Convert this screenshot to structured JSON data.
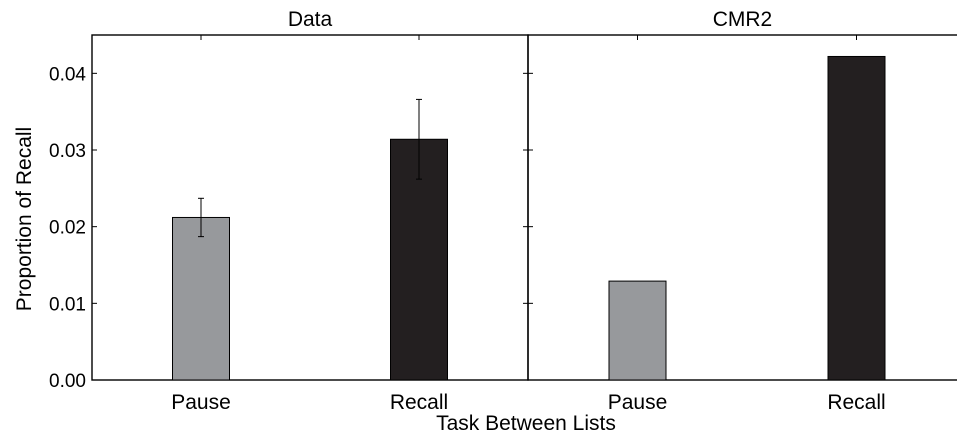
{
  "figure": {
    "ylabel": "Proportion of Recall",
    "xlabel": "Task Between Lists"
  },
  "chart_data": [
    {
      "type": "bar",
      "title": "Data",
      "categories": [
        "Pause",
        "Recall"
      ],
      "values": [
        0.0212,
        0.0314
      ],
      "error": [
        0.0025,
        0.0052
      ],
      "colors": [
        "#97999c",
        "#231f20"
      ],
      "ylim": [
        0,
        0.045
      ],
      "yticks": [
        "0.00",
        "0.01",
        "0.02",
        "0.03",
        "0.04"
      ],
      "grid": false
    },
    {
      "type": "bar",
      "title": "CMR2",
      "categories": [
        "Pause",
        "Recall"
      ],
      "values": [
        0.0129,
        0.0422
      ],
      "colors": [
        "#97999c",
        "#231f20"
      ],
      "ylim": [
        0,
        0.045
      ],
      "grid": false
    }
  ]
}
